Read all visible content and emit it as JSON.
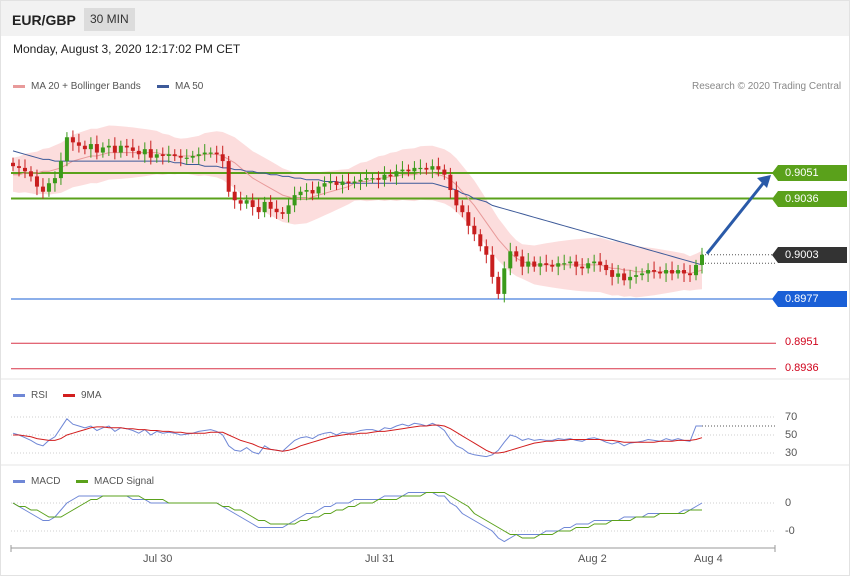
{
  "header": {
    "pair": "EUR/GBP",
    "timeframe": "30 MIN"
  },
  "date_text": "Monday, August 3, 2020 12:17:02 PM CET",
  "credit": "Research © 2020 Trading Central",
  "colors": {
    "resistance": "#5aa11b",
    "support": "#1a5fd6",
    "current": "#333333",
    "target": "#d0021b",
    "candle_up": "#3a9a1a",
    "candle_down": "#c81e1e",
    "ma20": "#e89a9a",
    "ma50": "#3d5a99",
    "band": "#fcd7d7",
    "rsi": "#6f87d6",
    "rsi_ma": "#d21e1e",
    "macd": "#6f87d6",
    "macd_signal": "#5aa11b",
    "arrow": "#2a5aa8"
  },
  "chart_data": [
    {
      "type": "candlestick",
      "title": "EUR/GBP 30 MIN",
      "legend": [
        {
          "name": "MA 20 + Bollinger Bands",
          "color": "#e89a9a"
        },
        {
          "name": "MA 50",
          "color": "#3d5a99"
        }
      ],
      "legend_placement": "top-left",
      "x_ticks": [
        "Jul 30",
        "Jul 31",
        "Aug 2",
        "Aug 4"
      ],
      "ylim": [
        0.8925,
        0.9075
      ],
      "levels": [
        {
          "label": "0.9051",
          "value": 0.9051,
          "kind": "resistance"
        },
        {
          "label": "0.9036",
          "value": 0.9036,
          "kind": "resistance"
        },
        {
          "label": "0.9003",
          "value": 0.9003,
          "kind": "current"
        },
        {
          "label": "0.8977",
          "value": 0.8977,
          "kind": "support"
        },
        {
          "label": "0.8951",
          "value": 0.8951,
          "kind": "target"
        },
        {
          "label": "0.8936",
          "value": 0.8936,
          "kind": "target"
        }
      ],
      "forecast_arrow": {
        "from": 0.9003,
        "to": 0.9051
      },
      "close_series": [
        0.9055,
        0.9054,
        0.9052,
        0.9049,
        0.9043,
        0.904,
        0.9045,
        0.9048,
        0.9058,
        0.9072,
        0.9069,
        0.9067,
        0.9065,
        0.9068,
        0.9063,
        0.9066,
        0.9067,
        0.9063,
        0.9067,
        0.9066,
        0.9064,
        0.9062,
        0.9065,
        0.906,
        0.9062,
        0.9061,
        0.9062,
        0.9061,
        0.906,
        0.906,
        0.9061,
        0.9062,
        0.9063,
        0.9063,
        0.9062,
        0.9058,
        0.904,
        0.9035,
        0.9033,
        0.9035,
        0.9031,
        0.9028,
        0.9034,
        0.903,
        0.9028,
        0.9027,
        0.9032,
        0.9038,
        0.904,
        0.9041,
        0.9039,
        0.9043,
        0.9045,
        0.9046,
        0.9044,
        0.9046,
        0.9045,
        0.9046,
        0.9047,
        0.9048,
        0.9048,
        0.9047,
        0.905,
        0.9049,
        0.9052,
        0.9053,
        0.9052,
        0.9054,
        0.9054,
        0.9053,
        0.9055,
        0.9053,
        0.905,
        0.9041,
        0.9032,
        0.9028,
        0.902,
        0.9015,
        0.9008,
        0.9003,
        0.899,
        0.898,
        0.8995,
        0.9005,
        0.9002,
        0.8996,
        0.8999,
        0.8996,
        0.8998,
        0.8997,
        0.8996,
        0.8998,
        0.8998,
        0.8999,
        0.8996,
        0.8995,
        0.8998,
        0.8999,
        0.8997,
        0.8994,
        0.899,
        0.8992,
        0.8988,
        0.899,
        0.8991,
        0.8992,
        0.8994,
        0.8993,
        0.8992,
        0.8994,
        0.8992,
        0.8994,
        0.8992,
        0.8991,
        0.8997,
        0.9003
      ],
      "ma20_series": [
        0.905,
        0.905,
        0.9051,
        0.9051,
        0.9051,
        0.9052,
        0.9052,
        0.9053,
        0.9054,
        0.9056,
        0.9058,
        0.9059,
        0.906,
        0.9061,
        0.9061,
        0.9062,
        0.9063,
        0.9063,
        0.9063,
        0.9063,
        0.9063,
        0.9063,
        0.9063,
        0.9063,
        0.9063,
        0.9062,
        0.9062,
        0.9061,
        0.9061,
        0.9061,
        0.9061,
        0.9061,
        0.9062,
        0.9062,
        0.9062,
        0.9061,
        0.9059,
        0.9057,
        0.9054,
        0.9051,
        0.9048,
        0.9046,
        0.9044,
        0.9042,
        0.904,
        0.9038,
        0.9037,
        0.9036,
        0.9036,
        0.9036,
        0.9037,
        0.9038,
        0.9039,
        0.904,
        0.9041,
        0.9042,
        0.9043,
        0.9045,
        0.9046,
        0.9046,
        0.9047,
        0.9048,
        0.9048,
        0.9049,
        0.9049,
        0.905,
        0.905,
        0.905,
        0.9051,
        0.9051,
        0.9051,
        0.905,
        0.9049,
        0.9047,
        0.9044,
        0.904,
        0.9036,
        0.9032,
        0.9027,
        0.9022,
        0.9017,
        0.9012,
        0.9008,
        0.9004,
        0.9001,
        0.8999,
        0.8998,
        0.8997,
        0.8997,
        0.8997,
        0.8997,
        0.8997,
        0.8997,
        0.8997,
        0.8997,
        0.8997,
        0.8997,
        0.8997,
        0.8997,
        0.8996,
        0.8995,
        0.8995,
        0.8994,
        0.8994,
        0.8993,
        0.8993,
        0.8993,
        0.8993,
        0.8993,
        0.8993,
        0.8993,
        0.8993,
        0.8993,
        0.8992,
        0.8993,
        0.8994
      ],
      "ma50_series": [
        0.9064,
        0.9063,
        0.9062,
        0.9061,
        0.906,
        0.9059,
        0.9059,
        0.9058,
        0.9058,
        0.9058,
        0.9058,
        0.9058,
        0.9058,
        0.9058,
        0.9058,
        0.9058,
        0.9058,
        0.9058,
        0.9058,
        0.9058,
        0.9058,
        0.9058,
        0.9058,
        0.9058,
        0.9058,
        0.9058,
        0.9058,
        0.9057,
        0.9057,
        0.9056,
        0.9056,
        0.9056,
        0.9055,
        0.9055,
        0.9055,
        0.9054,
        0.9054,
        0.9053,
        0.9053,
        0.9052,
        0.9052,
        0.9051,
        0.9051,
        0.905,
        0.905,
        0.9049,
        0.9049,
        0.9048,
        0.9048,
        0.9047,
        0.9047,
        0.9047,
        0.9046,
        0.9046,
        0.9046,
        0.9045,
        0.9045,
        0.9045,
        0.9045,
        0.9045,
        0.9045,
        0.9045,
        0.9045,
        0.9045,
        0.9045,
        0.9045,
        0.9045,
        0.9045,
        0.9045,
        0.9045,
        0.9045,
        0.9044,
        0.9043,
        0.9042,
        0.9041,
        0.9039,
        0.9038,
        0.9036,
        0.9035,
        0.9034,
        0.9032,
        0.9031,
        0.903,
        0.9029,
        0.9028,
        0.9027,
        0.9026,
        0.9025,
        0.9024,
        0.9023,
        0.9022,
        0.9021,
        0.902,
        0.9019,
        0.9018,
        0.9017,
        0.9016,
        0.9015,
        0.9014,
        0.9013,
        0.9012,
        0.9011,
        0.901,
        0.9009,
        0.9008,
        0.9007,
        0.9006,
        0.9005,
        0.9004,
        0.9003,
        0.9002,
        0.9001,
        0.9,
        0.8999,
        0.8998,
        0.8997
      ]
    },
    {
      "type": "line",
      "legend": [
        {
          "name": "RSI",
          "color": "#6f87d6"
        },
        {
          "name": "9MA",
          "color": "#d21e1e"
        }
      ],
      "y_ticks": [
        "70",
        "50",
        "30"
      ],
      "ylim": [
        20,
        80
      ],
      "series": [
        {
          "name": "RSI",
          "values": [
            52,
            50,
            47,
            44,
            40,
            38,
            44,
            48,
            58,
            68,
            62,
            60,
            58,
            60,
            55,
            58,
            60,
            54,
            58,
            57,
            55,
            52,
            56,
            50,
            54,
            52,
            53,
            52,
            50,
            51,
            52,
            54,
            55,
            56,
            54,
            50,
            38,
            33,
            32,
            36,
            31,
            29,
            38,
            34,
            33,
            32,
            38,
            44,
            47,
            48,
            46,
            50,
            52,
            53,
            50,
            53,
            52,
            53,
            55,
            56,
            56,
            54,
            58,
            57,
            60,
            62,
            60,
            63,
            62,
            60,
            63,
            60,
            55,
            45,
            38,
            35,
            30,
            28,
            27,
            26,
            28,
            33,
            42,
            50,
            48,
            44,
            46,
            44,
            45,
            44,
            44,
            46,
            45,
            46,
            44,
            43,
            46,
            47,
            45,
            42,
            40,
            42,
            38,
            41,
            42,
            43,
            45,
            44,
            43,
            46,
            44,
            46,
            44,
            43,
            60,
            60
          ]
        },
        {
          "name": "9MA",
          "values": [
            50,
            50,
            49,
            48,
            46,
            45,
            44,
            44,
            46,
            50,
            52,
            54,
            56,
            58,
            59,
            59,
            58,
            58,
            58,
            57,
            57,
            56,
            56,
            55,
            55,
            54,
            54,
            53,
            53,
            52,
            52,
            52,
            52,
            53,
            53,
            53,
            50,
            47,
            44,
            42,
            40,
            37,
            35,
            34,
            33,
            32,
            33,
            35,
            38,
            40,
            42,
            44,
            46,
            48,
            49,
            50,
            51,
            51,
            52,
            52,
            53,
            54,
            54,
            55,
            56,
            57,
            58,
            59,
            60,
            60,
            61,
            61,
            60,
            57,
            53,
            49,
            45,
            41,
            37,
            33,
            30,
            30,
            31,
            33,
            35,
            37,
            39,
            41,
            42,
            43,
            43,
            44,
            44,
            45,
            45,
            45,
            45,
            45,
            45,
            44,
            44,
            43,
            42,
            42,
            42,
            42,
            42,
            42,
            43,
            43,
            43,
            44,
            44,
            44,
            45,
            47
          ]
        }
      ]
    },
    {
      "type": "line",
      "legend": [
        {
          "name": "MACD",
          "color": "#6f87d6"
        },
        {
          "name": "MACD Signal",
          "color": "#5aa11b"
        }
      ],
      "y_ticks": [
        "0",
        "-0"
      ],
      "ylim": [
        -0.0012,
        0.0003
      ],
      "series": [
        {
          "name": "MACD",
          "values": [
            0.0,
            -0.0001,
            -0.0002,
            -0.0003,
            -0.0004,
            -0.0005,
            -0.0005,
            -0.0004,
            -0.0002,
            0.0,
            0.0001,
            0.0002,
            0.0002,
            0.0002,
            0.0002,
            0.0002,
            0.0002,
            0.0002,
            0.0002,
            0.0002,
            0.0001,
            0.0001,
            0.0001,
            0.0,
            0.0,
            0.0,
            0.0,
            0.0,
            0.0,
            0.0,
            0.0,
            0.0,
            0.0,
            0.0,
            0.0,
            -0.0001,
            -0.0002,
            -0.0003,
            -0.0004,
            -0.0005,
            -0.0006,
            -0.0007,
            -0.0007,
            -0.0007,
            -0.0007,
            -0.0007,
            -0.0006,
            -0.0005,
            -0.0004,
            -0.0003,
            -0.0003,
            -0.0002,
            -0.0001,
            -0.0001,
            0.0,
            0.0,
            0.0,
            0.0001,
            0.0001,
            0.0001,
            0.0001,
            0.0001,
            0.0002,
            0.0002,
            0.0002,
            0.0002,
            0.0003,
            0.0003,
            0.0003,
            0.0003,
            0.0003,
            0.0002,
            0.0002,
            0.0,
            -0.0001,
            -0.0003,
            -0.0004,
            -0.0005,
            -0.0006,
            -0.0007,
            -0.0008,
            -0.001,
            -0.0011,
            -0.001,
            -0.0009,
            -0.0009,
            -0.0009,
            -0.0009,
            -0.0009,
            -0.0008,
            -0.0008,
            -0.0008,
            -0.0007,
            -0.0007,
            -0.0006,
            -0.0006,
            -0.0006,
            -0.0005,
            -0.0005,
            -0.0005,
            -0.0005,
            -0.0005,
            -0.0004,
            -0.0004,
            -0.0004,
            -0.0004,
            -0.0003,
            -0.0003,
            -0.0003,
            -0.0003,
            -0.0003,
            -0.0003,
            -0.0002,
            -0.0002,
            -0.0001,
            0.0
          ]
        },
        {
          "name": "MACD Signal",
          "values": [
            0.0,
            -0.0001,
            -0.0001,
            -0.0002,
            -0.0002,
            -0.0003,
            -0.0004,
            -0.0004,
            -0.0004,
            -0.0003,
            -0.0002,
            -0.0001,
            0.0,
            0.0001,
            0.0001,
            0.0002,
            0.0002,
            0.0002,
            0.0002,
            0.0002,
            0.0002,
            0.0002,
            0.0001,
            0.0001,
            0.0001,
            0.0001,
            0.0,
            0.0,
            0.0,
            0.0,
            0.0,
            0.0,
            0.0,
            0.0,
            0.0,
            -0.0001,
            -0.0001,
            -0.0002,
            -0.0002,
            -0.0003,
            -0.0004,
            -0.0005,
            -0.0005,
            -0.0006,
            -0.0006,
            -0.0006,
            -0.0006,
            -0.0006,
            -0.0005,
            -0.0005,
            -0.0004,
            -0.0004,
            -0.0003,
            -0.0003,
            -0.0002,
            -0.0002,
            -0.0001,
            -0.0001,
            0.0,
            0.0,
            0.0,
            0.0001,
            0.0001,
            0.0001,
            0.0001,
            0.0002,
            0.0002,
            0.0002,
            0.0002,
            0.0003,
            0.0003,
            0.0003,
            0.0003,
            0.0002,
            0.0001,
            0.0,
            -0.0001,
            -0.0003,
            -0.0004,
            -0.0005,
            -0.0006,
            -0.0007,
            -0.0008,
            -0.0009,
            -0.0009,
            -0.001,
            -0.001,
            -0.001,
            -0.0009,
            -0.0009,
            -0.0009,
            -0.0008,
            -0.0008,
            -0.0008,
            -0.0007,
            -0.0007,
            -0.0007,
            -0.0006,
            -0.0006,
            -0.0006,
            -0.0005,
            -0.0005,
            -0.0005,
            -0.0005,
            -0.0004,
            -0.0004,
            -0.0004,
            -0.0004,
            -0.0003,
            -0.0003,
            -0.0003,
            -0.0003,
            -0.0003,
            -0.0002,
            -0.0002,
            -0.0002
          ]
        }
      ]
    }
  ]
}
